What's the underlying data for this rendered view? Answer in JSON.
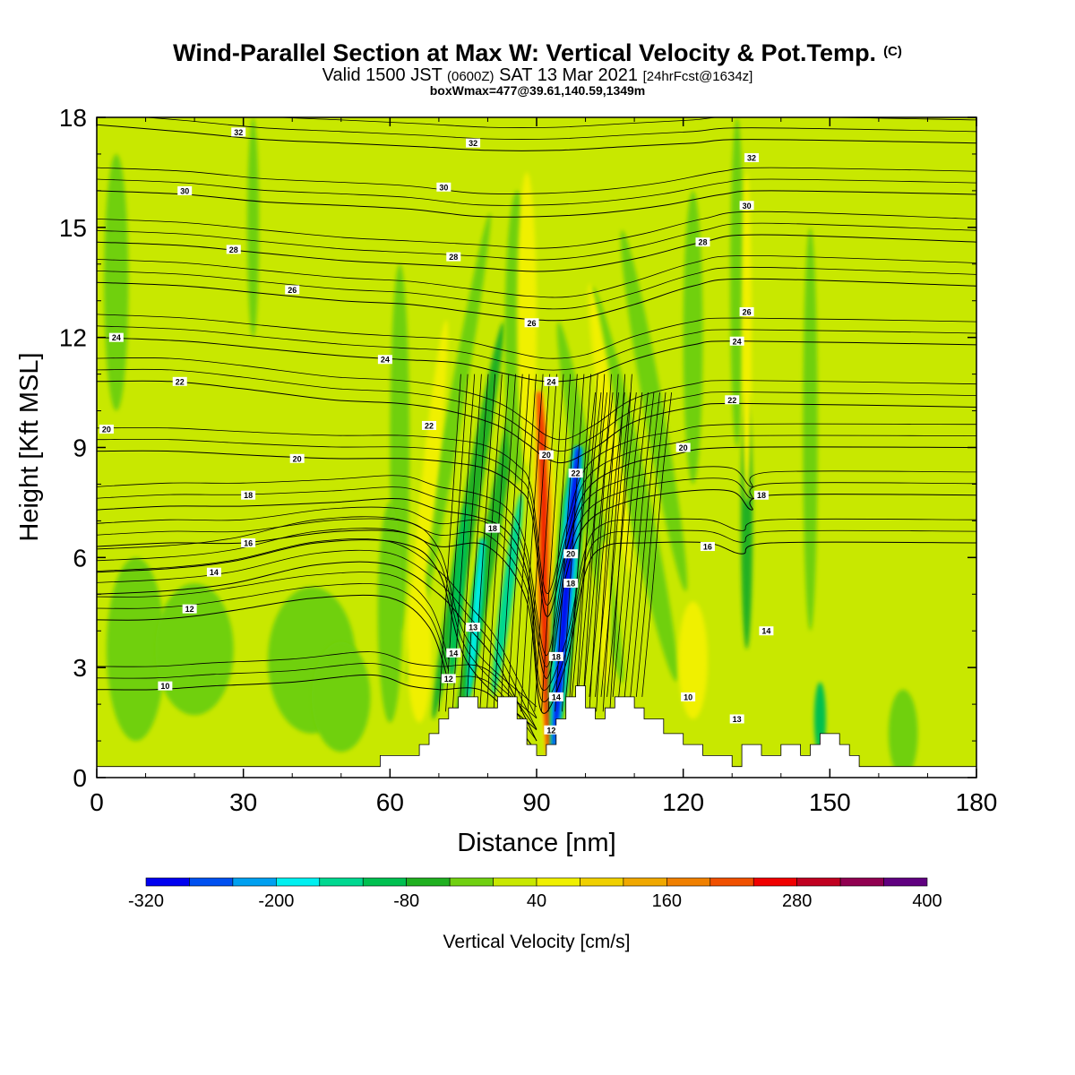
{
  "title": {
    "main": "Wind-Parallel Section at Max W: Vertical Velocity & Pot.Temp.",
    "mark": "(C)"
  },
  "subtitle": {
    "valid": "Valid 1500 JST",
    "zone": "(0600Z)",
    "date": "SAT 13 Mar 2021",
    "fcst": "[24hrFcst@1634z]"
  },
  "box_info": "boxWmax=477@39.61,140.59,1349m",
  "chart_data": {
    "type": "heatmap",
    "xlabel": "Distance [nm]",
    "ylabel": "Height [Kft MSL]",
    "xlim": [
      0,
      180
    ],
    "ylim": [
      0,
      18
    ],
    "xticks": [
      0,
      30,
      60,
      90,
      120,
      150,
      180
    ],
    "yticks": [
      0,
      3,
      6,
      9,
      12,
      15,
      18
    ],
    "colorbar": {
      "label": "Vertical Velocity [cm/s]",
      "levels": [
        -320,
        -280,
        -240,
        -200,
        -160,
        -120,
        -80,
        -40,
        0,
        40,
        80,
        120,
        160,
        200,
        240,
        280,
        320,
        360,
        400
      ],
      "tick_labels": [
        "-320",
        "-200",
        "-80",
        "40",
        "160",
        "280",
        "400"
      ],
      "colors": [
        "#0000f0",
        "#0050f0",
        "#00a0f0",
        "#00f0f0",
        "#00d890",
        "#00c050",
        "#20b020",
        "#70d010",
        "#c8e800",
        "#f0f000",
        "#f0d000",
        "#f0a800",
        "#f08000",
        "#f05000",
        "#f00000",
        "#c00020",
        "#900050",
        "#600080"
      ]
    },
    "background_level": "0 to 40",
    "updraft_max": 477,
    "updraft_max_location": [
      39.61,
      140.59
    ],
    "updraft_max_height_m": 1349,
    "updraft_cores_x": [
      68,
      92,
      105,
      133
    ],
    "downdraft_cores_x": [
      75,
      97
    ],
    "terrain_kft": [
      [
        0,
        0.3
      ],
      [
        58,
        0.3
      ],
      [
        58,
        0.6
      ],
      [
        66,
        0.6
      ],
      [
        66,
        0.9
      ],
      [
        68,
        0.9
      ],
      [
        68,
        1.2
      ],
      [
        70,
        1.2
      ],
      [
        70,
        1.6
      ],
      [
        72,
        1.6
      ],
      [
        72,
        1.9
      ],
      [
        74,
        1.9
      ],
      [
        74,
        2.2
      ],
      [
        78,
        2.2
      ],
      [
        78,
        1.9
      ],
      [
        82,
        1.9
      ],
      [
        82,
        2.2
      ],
      [
        86,
        2.2
      ],
      [
        86,
        1.6
      ],
      [
        88,
        1.6
      ],
      [
        88,
        0.9
      ],
      [
        90,
        0.9
      ],
      [
        90,
        0.6
      ],
      [
        92,
        0.6
      ],
      [
        92,
        0.9
      ],
      [
        94,
        0.9
      ],
      [
        94,
        1.6
      ],
      [
        96,
        1.6
      ],
      [
        96,
        2.2
      ],
      [
        98,
        2.2
      ],
      [
        98,
        2.5
      ],
      [
        100,
        2.5
      ],
      [
        100,
        1.9
      ],
      [
        102,
        1.9
      ],
      [
        102,
        1.6
      ],
      [
        104,
        1.6
      ],
      [
        104,
        1.9
      ],
      [
        106,
        1.9
      ],
      [
        106,
        2.2
      ],
      [
        110,
        2.2
      ],
      [
        110,
        1.9
      ],
      [
        112,
        1.9
      ],
      [
        112,
        1.6
      ],
      [
        116,
        1.6
      ],
      [
        116,
        1.2
      ],
      [
        120,
        1.2
      ],
      [
        120,
        0.9
      ],
      [
        124,
        0.9
      ],
      [
        124,
        0.6
      ],
      [
        130,
        0.6
      ],
      [
        130,
        0.3
      ],
      [
        132,
        0.3
      ],
      [
        132,
        0.9
      ],
      [
        136,
        0.9
      ],
      [
        136,
        0.6
      ],
      [
        140,
        0.6
      ],
      [
        140,
        0.9
      ],
      [
        144,
        0.9
      ],
      [
        144,
        0.6
      ],
      [
        146,
        0.6
      ],
      [
        146,
        0.9
      ],
      [
        148,
        0.9
      ],
      [
        148,
        1.2
      ],
      [
        152,
        1.2
      ],
      [
        152,
        0.9
      ],
      [
        154,
        0.9
      ],
      [
        154,
        0.6
      ],
      [
        156,
        0.6
      ],
      [
        156,
        0.3
      ],
      [
        180,
        0.3
      ]
    ],
    "isentropes": [
      {
        "theta": 10,
        "points": [
          [
            0,
            2.4
          ],
          [
            12,
            2.4
          ],
          [
            24,
            2.5
          ],
          [
            40,
            2.6
          ],
          [
            56,
            2.8
          ],
          [
            64,
            2.5
          ],
          [
            70,
            2.4
          ],
          [
            80,
            2.3
          ],
          [
            90,
            0.7
          ]
        ]
      },
      {
        "theta": 12,
        "points": [
          [
            0,
            4.3
          ],
          [
            10,
            4.3
          ],
          [
            20,
            4.4
          ],
          [
            30,
            4.6
          ],
          [
            45,
            4.9
          ],
          [
            60,
            4.9
          ],
          [
            68,
            4.1
          ],
          [
            72,
            2.6
          ]
        ]
      },
      {
        "theta": 13,
        "points": [
          [
            0,
            5.0
          ],
          [
            15,
            5.1
          ],
          [
            28,
            5.3
          ],
          [
            45,
            5.8
          ],
          [
            60,
            5.8
          ],
          [
            70,
            5.0
          ],
          [
            76,
            4.1
          ],
          [
            82,
            3.1
          ],
          [
            90,
            1.0
          ]
        ]
      },
      {
        "theta": 14,
        "points": [
          [
            0,
            5.6
          ],
          [
            15,
            5.7
          ],
          [
            28,
            5.9
          ],
          [
            45,
            6.4
          ],
          [
            62,
            6.4
          ],
          [
            70,
            5.6
          ],
          [
            76,
            3.1
          ],
          [
            90,
            1.3
          ]
        ]
      },
      {
        "theta": 16,
        "points": [
          [
            0,
            6.3
          ],
          [
            15,
            6.4
          ],
          [
            30,
            6.4
          ],
          [
            48,
            6.7
          ],
          [
            62,
            6.7
          ],
          [
            70,
            6.3
          ],
          [
            80,
            6.3
          ],
          [
            88,
            4.8
          ],
          [
            91,
            1.8
          ],
          [
            96,
            3.1
          ],
          [
            100,
            5.6
          ],
          [
            104,
            6.3
          ],
          [
            112,
            6.4
          ],
          [
            125,
            6.4
          ],
          [
            132,
            6.1
          ],
          [
            138,
            6.4
          ],
          [
            180,
            6.4
          ]
        ]
      },
      {
        "theta": 18,
        "points": [
          [
            0,
            7.3
          ],
          [
            15,
            7.4
          ],
          [
            30,
            7.4
          ],
          [
            48,
            7.5
          ],
          [
            62,
            7.6
          ],
          [
            70,
            7.3
          ],
          [
            78,
            7.1
          ],
          [
            84,
            6.7
          ],
          [
            88,
            5.6
          ],
          [
            92,
            2.7
          ],
          [
            96,
            5.5
          ],
          [
            100,
            6.9
          ],
          [
            108,
            7.5
          ],
          [
            120,
            7.8
          ],
          [
            130,
            7.8
          ],
          [
            134,
            7.3
          ],
          [
            138,
            7.7
          ],
          [
            180,
            7.7
          ]
        ]
      },
      {
        "theta": 20,
        "points": [
          [
            0,
            8.9
          ],
          [
            15,
            8.9
          ],
          [
            30,
            8.8
          ],
          [
            48,
            8.7
          ],
          [
            62,
            8.7
          ],
          [
            72,
            8.6
          ],
          [
            80,
            8.4
          ],
          [
            86,
            7.9
          ],
          [
            89,
            7.2
          ],
          [
            92,
            4.4
          ],
          [
            96,
            6.2
          ],
          [
            100,
            7.8
          ],
          [
            108,
            8.5
          ],
          [
            118,
            8.8
          ],
          [
            130,
            9.0
          ],
          [
            180,
            9.0
          ]
        ]
      },
      {
        "theta": 22,
        "points": [
          [
            0,
            10.8
          ],
          [
            15,
            10.8
          ],
          [
            30,
            10.6
          ],
          [
            48,
            10.3
          ],
          [
            62,
            10.2
          ],
          [
            72,
            10.0
          ],
          [
            82,
            9.6
          ],
          [
            88,
            9.1
          ],
          [
            92,
            8.7
          ],
          [
            96,
            8.6
          ],
          [
            102,
            9.0
          ],
          [
            110,
            9.7
          ],
          [
            122,
            10.1
          ],
          [
            132,
            10.2
          ],
          [
            180,
            10.1
          ]
        ]
      },
      {
        "theta": 24,
        "points": [
          [
            0,
            12.0
          ],
          [
            18,
            11.9
          ],
          [
            34,
            11.7
          ],
          [
            50,
            11.5
          ],
          [
            62,
            11.4
          ],
          [
            74,
            11.3
          ],
          [
            84,
            11.0
          ],
          [
            92,
            10.8
          ],
          [
            100,
            10.9
          ],
          [
            110,
            11.4
          ],
          [
            122,
            11.8
          ],
          [
            132,
            11.9
          ],
          [
            180,
            11.8
          ]
        ]
      },
      {
        "theta": 26,
        "points": [
          [
            0,
            13.5
          ],
          [
            18,
            13.4
          ],
          [
            34,
            13.2
          ],
          [
            50,
            13.0
          ],
          [
            64,
            12.9
          ],
          [
            76,
            12.7
          ],
          [
            88,
            12.5
          ],
          [
            98,
            12.5
          ],
          [
            110,
            12.9
          ],
          [
            122,
            13.4
          ],
          [
            134,
            13.6
          ],
          [
            180,
            13.4
          ]
        ]
      },
      {
        "theta": 28,
        "points": [
          [
            0,
            14.6
          ],
          [
            18,
            14.5
          ],
          [
            34,
            14.3
          ],
          [
            50,
            14.1
          ],
          [
            64,
            14.0
          ],
          [
            78,
            13.9
          ],
          [
            90,
            13.8
          ],
          [
            100,
            13.9
          ],
          [
            112,
            14.2
          ],
          [
            124,
            14.6
          ],
          [
            136,
            14.8
          ],
          [
            180,
            14.6
          ]
        ]
      },
      {
        "theta": 30,
        "points": [
          [
            0,
            16.0
          ],
          [
            18,
            15.9
          ],
          [
            34,
            15.7
          ],
          [
            50,
            15.6
          ],
          [
            64,
            15.5
          ],
          [
            78,
            15.3
          ],
          [
            92,
            15.3
          ],
          [
            104,
            15.4
          ],
          [
            116,
            15.6
          ],
          [
            128,
            15.9
          ],
          [
            138,
            16.0
          ],
          [
            180,
            15.9
          ]
        ]
      },
      {
        "theta": 32,
        "points": [
          [
            0,
            17.8
          ],
          [
            18,
            17.6
          ],
          [
            34,
            17.4
          ],
          [
            50,
            17.3
          ],
          [
            66,
            17.2
          ],
          [
            80,
            17.1
          ],
          [
            94,
            17.1
          ],
          [
            108,
            17.2
          ],
          [
            122,
            17.3
          ],
          [
            134,
            17.4
          ],
          [
            180,
            17.3
          ]
        ]
      }
    ],
    "contour_labels": [
      {
        "text": "32",
        "x": 29,
        "y": 17.6
      },
      {
        "text": "32",
        "x": 77,
        "y": 17.3
      },
      {
        "text": "32",
        "x": 134,
        "y": 16.9
      },
      {
        "text": "30",
        "x": 18,
        "y": 16.0
      },
      {
        "text": "30",
        "x": 71,
        "y": 16.1
      },
      {
        "text": "30",
        "x": 133,
        "y": 15.6
      },
      {
        "text": "28",
        "x": 28,
        "y": 14.4
      },
      {
        "text": "28",
        "x": 73,
        "y": 14.2
      },
      {
        "text": "28",
        "x": 124,
        "y": 14.6
      },
      {
        "text": "26",
        "x": 40,
        "y": 13.3
      },
      {
        "text": "26",
        "x": 89,
        "y": 12.4
      },
      {
        "text": "26",
        "x": 133,
        "y": 12.7
      },
      {
        "text": "24",
        "x": 4,
        "y": 12.0
      },
      {
        "text": "24",
        "x": 59,
        "y": 11.4
      },
      {
        "text": "24",
        "x": 93,
        "y": 10.8
      },
      {
        "text": "24",
        "x": 131,
        "y": 11.9
      },
      {
        "text": "22",
        "x": 17,
        "y": 10.8
      },
      {
        "text": "22",
        "x": 68,
        "y": 9.6
      },
      {
        "text": "22",
        "x": 130,
        "y": 10.3
      },
      {
        "text": "22",
        "x": 98,
        "y": 8.3
      },
      {
        "text": "20",
        "x": 2,
        "y": 9.5
      },
      {
        "text": "20",
        "x": 41,
        "y": 8.7
      },
      {
        "text": "20",
        "x": 92,
        "y": 8.8
      },
      {
        "text": "20",
        "x": 120,
        "y": 9.0
      },
      {
        "text": "20",
        "x": 97,
        "y": 6.1
      },
      {
        "text": "18",
        "x": 31,
        "y": 7.7
      },
      {
        "text": "18",
        "x": 81,
        "y": 6.8
      },
      {
        "text": "18",
        "x": 136,
        "y": 7.7
      },
      {
        "text": "18",
        "x": 97,
        "y": 5.3
      },
      {
        "text": "18",
        "x": 94,
        "y": 3.3
      },
      {
        "text": "16",
        "x": 31,
        "y": 6.4
      },
      {
        "text": "16",
        "x": 125,
        "y": 6.3
      },
      {
        "text": "14",
        "x": 24,
        "y": 5.6
      },
      {
        "text": "14",
        "x": 73,
        "y": 3.4
      },
      {
        "text": "14",
        "x": 137,
        "y": 4.0
      },
      {
        "text": "14",
        "x": 94,
        "y": 2.2
      },
      {
        "text": "13",
        "x": 77,
        "y": 4.1
      },
      {
        "text": "13",
        "x": 131,
        "y": 1.6
      },
      {
        "text": "12",
        "x": 19,
        "y": 4.6
      },
      {
        "text": "12",
        "x": 72,
        "y": 2.7
      },
      {
        "text": "12",
        "x": 93,
        "y": 1.3
      },
      {
        "text": "10",
        "x": 14,
        "y": 2.5
      },
      {
        "text": "10",
        "x": 121,
        "y": 2.2
      }
    ]
  }
}
